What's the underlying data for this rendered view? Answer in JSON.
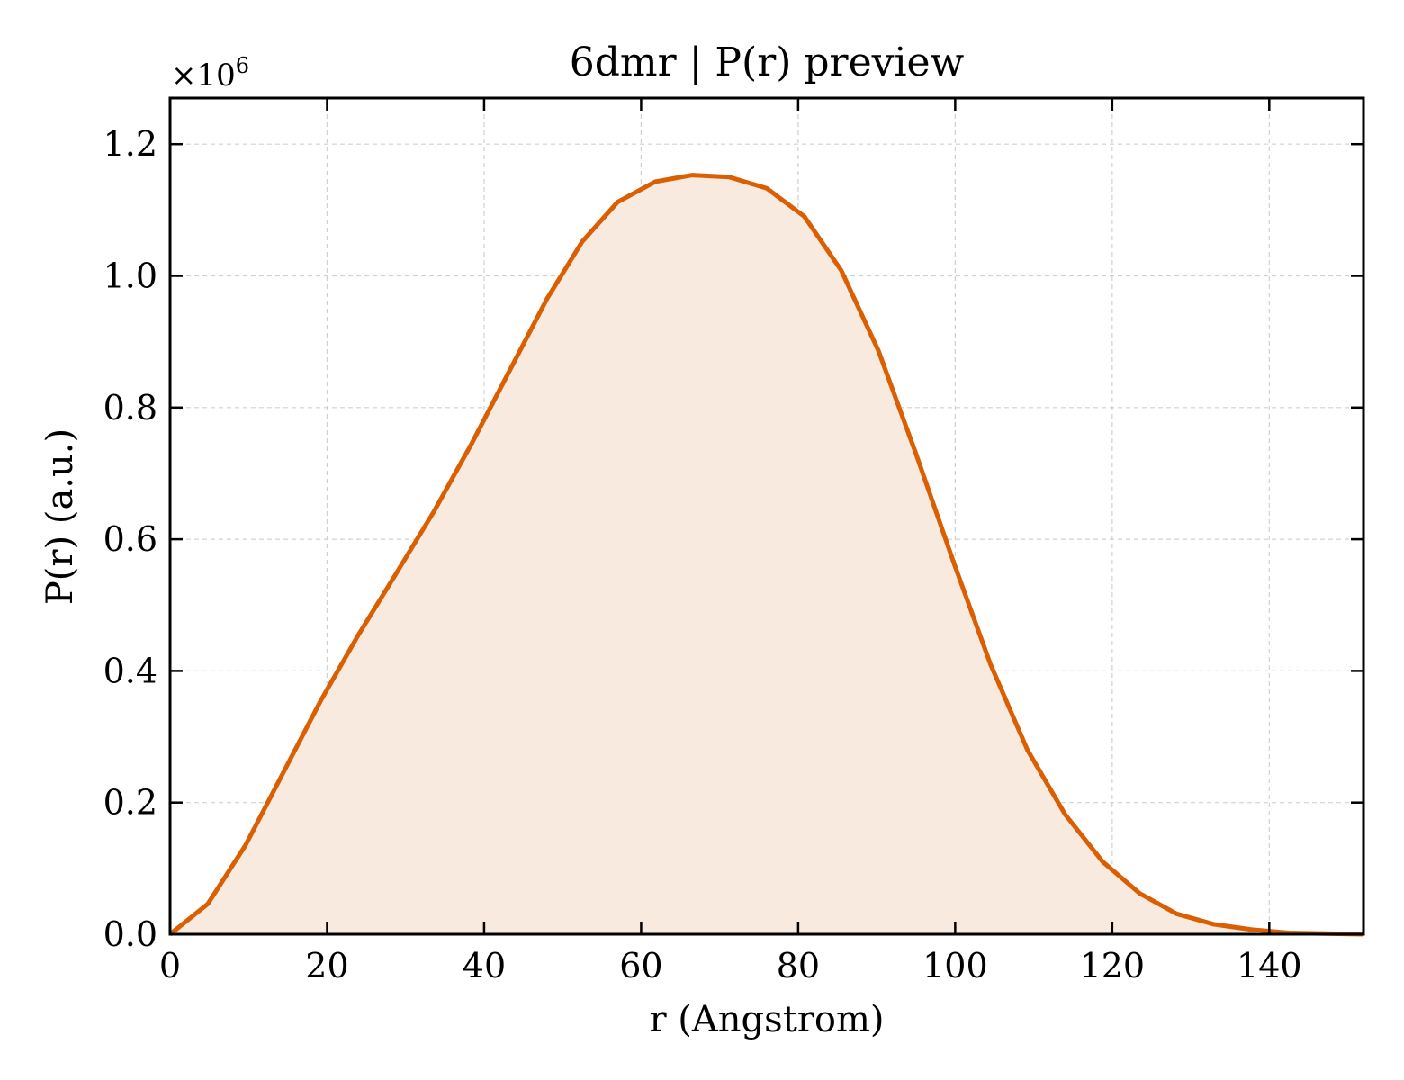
{
  "chart_data": {
    "type": "area",
    "title": "6dmr | P(r) preview",
    "xlabel": "r (Angstrom)",
    "ylabel": "P(r) (a.u.)",
    "y_multiplier": "×10",
    "y_multiplier_exponent": "6",
    "xlim": [
      0,
      152
    ],
    "ylim": [
      0,
      1.27
    ],
    "y_unit_scale": 1000000,
    "xticks": [
      0,
      20,
      40,
      60,
      80,
      100,
      120,
      140
    ],
    "yticks": [
      0.0,
      0.2,
      0.4,
      0.6,
      0.8,
      1.0,
      1.2
    ],
    "ytick_labels": [
      "0.0",
      "0.2",
      "0.4",
      "0.6",
      "0.8",
      "1.0",
      "1.2"
    ],
    "grid": true,
    "line_color": "#d95f02",
    "fill_color": "#f9eadf",
    "series": [
      {
        "x": [
          0,
          4.8,
          9.6,
          14.4,
          19.2,
          24.0,
          28.8,
          33.6,
          38.4,
          43.2,
          48.0,
          52.5,
          57.0,
          61.8,
          66.5,
          71.2,
          76.0,
          80.8,
          85.5,
          90.2,
          95.0,
          99.8,
          104.5,
          109.2,
          114.0,
          118.8,
          123.5,
          128.2,
          133.0,
          137.8,
          142.5,
          147.2,
          152.0
        ],
        "y": [
          0.0,
          0.046,
          0.135,
          0.245,
          0.355,
          0.455,
          0.548,
          0.642,
          0.745,
          0.855,
          0.965,
          1.052,
          1.112,
          1.143,
          1.153,
          1.15,
          1.133,
          1.09,
          1.008,
          0.887,
          0.73,
          0.565,
          0.41,
          0.28,
          0.182,
          0.11,
          0.062,
          0.031,
          0.015,
          0.007,
          0.002,
          0.001,
          0.0
        ]
      }
    ]
  }
}
